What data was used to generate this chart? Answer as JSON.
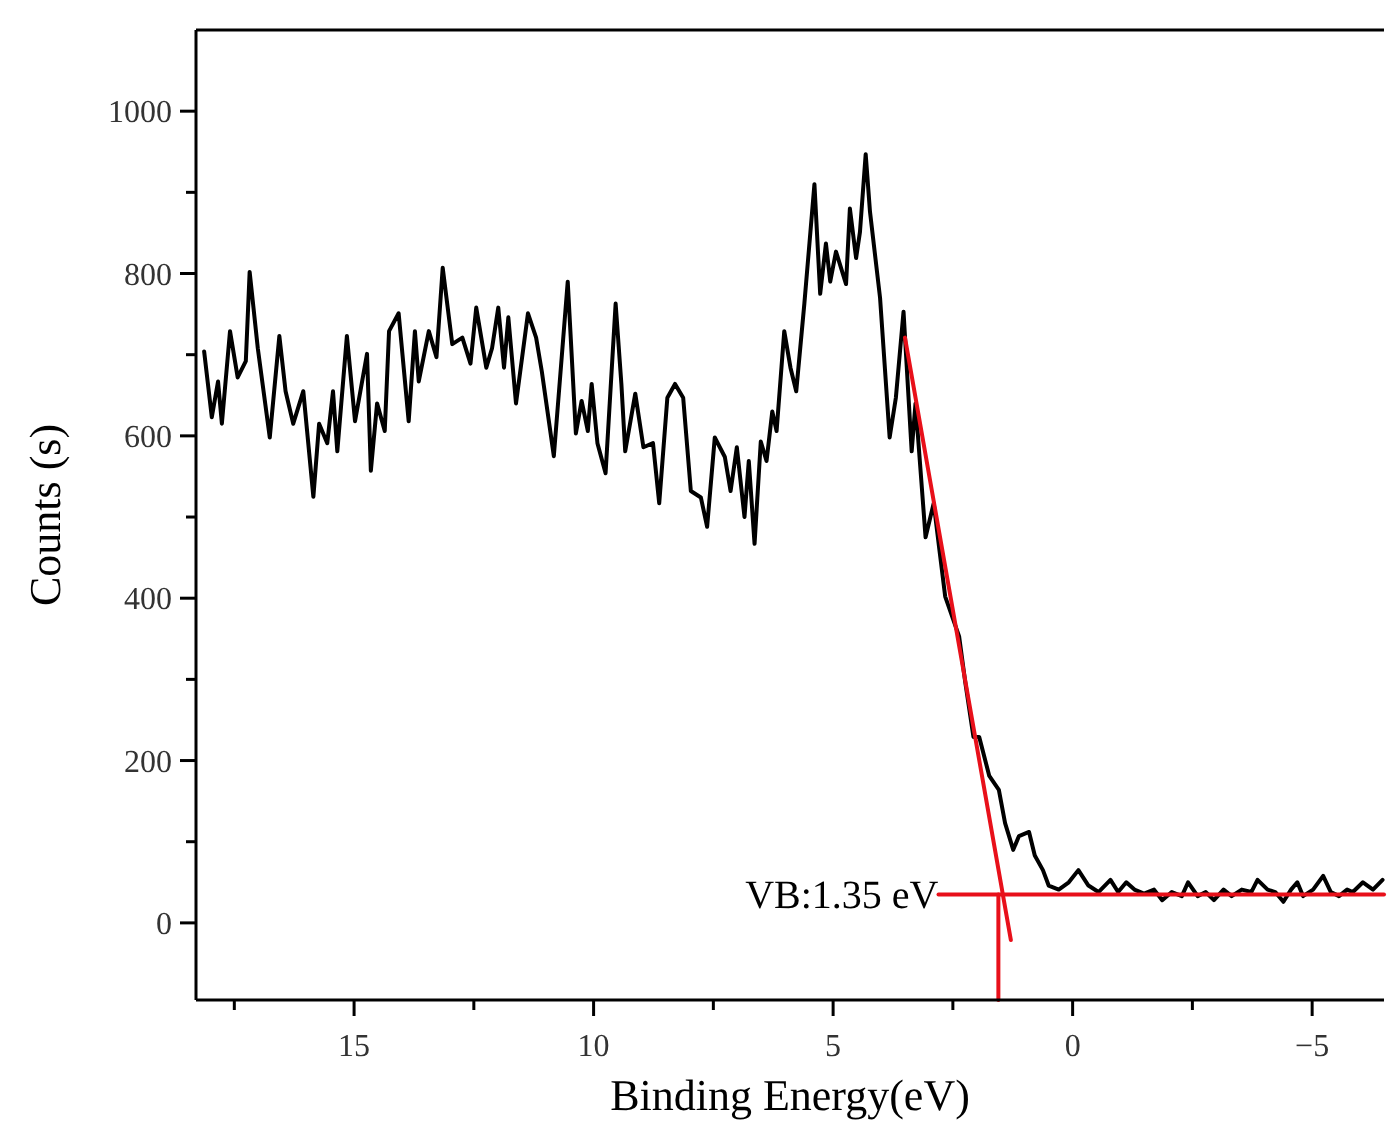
{
  "chart_data": {
    "type": "line",
    "xlabel": "Binding Energy(eV)",
    "ylabel": "Counts (s)",
    "xlim": [
      18.3,
      -6.5
    ],
    "ylim": [
      -95,
      1100
    ],
    "xticks": [
      {
        "value": 17.5,
        "label": null
      },
      15,
      {
        "value": 12.5,
        "label": null
      },
      10,
      {
        "value": 7.5,
        "label": null
      },
      5,
      {
        "value": 2.5,
        "label": null
      },
      0,
      {
        "value": -2.5,
        "label": null
      },
      {
        "value": -5,
        "label": "−5"
      }
    ],
    "yticks": [
      0,
      {
        "value": 100,
        "label": null
      },
      200,
      {
        "value": 300,
        "label": null
      },
      400,
      {
        "value": 500,
        "label": null
      },
      600,
      {
        "value": 700,
        "label": null
      },
      800,
      {
        "value": 900,
        "label": null
      },
      1000
    ],
    "grid": false,
    "marker": "none",
    "line_style": "solid",
    "annotations": [
      {
        "text": "VB:1.35 eV",
        "x": 2.8,
        "y": 35
      }
    ],
    "series": [
      {
        "color": "#000000",
        "x": [
          18.13,
          17.97,
          17.84,
          17.76,
          17.59,
          17.43,
          17.26,
          17.18,
          17.01,
          16.76,
          16.56,
          16.43,
          16.27,
          16.06,
          15.85,
          15.73,
          15.56,
          15.44,
          15.35,
          15.15,
          14.98,
          14.73,
          14.65,
          14.52,
          14.36,
          14.27,
          14.07,
          13.86,
          13.73,
          13.65,
          13.44,
          13.28,
          13.15,
          12.95,
          12.74,
          12.57,
          12.45,
          12.24,
          12.12,
          11.99,
          11.87,
          11.78,
          11.62,
          11.37,
          11.2,
          11.08,
          10.83,
          10.54,
          10.37,
          10.25,
          10.12,
          10.04,
          9.92,
          9.75,
          9.54,
          9.42,
          9.34,
          9.13,
          8.96,
          8.76,
          8.63,
          8.46,
          8.3,
          8.13,
          7.97,
          7.76,
          7.63,
          7.47,
          7.26,
          7.14,
          7.01,
          6.85,
          6.76,
          6.64,
          6.51,
          6.39,
          6.27,
          6.18,
          6.02,
          5.89,
          5.77,
          5.6,
          5.39,
          5.27,
          5.15,
          5.06,
          4.94,
          4.73,
          4.65,
          4.52,
          4.44,
          4.32,
          4.23,
          4.02,
          3.82,
          3.69,
          3.53,
          3.36,
          3.28,
          3.07,
          2.9,
          2.78,
          2.66,
          2.37,
          2.24,
          2.07,
          1.95,
          1.74,
          1.54,
          1.41,
          1.24,
          1.12,
          0.91,
          0.79,
          0.62,
          0.5,
          0.29,
          0.08,
          -0.12,
          -0.33,
          -0.54,
          -0.79,
          -0.95,
          -1.12,
          -1.29,
          -1.49,
          -1.7,
          -1.87,
          -2.07,
          -2.28,
          -2.41,
          -2.61,
          -2.78,
          -2.95,
          -3.15,
          -3.32,
          -3.53,
          -3.73,
          -3.86,
          -4.07,
          -4.23,
          -4.4,
          -4.56,
          -4.69,
          -4.81,
          -5.02,
          -5.23,
          -5.39,
          -5.56,
          -5.73,
          -5.85,
          -6.06,
          -6.27,
          -6.47
        ],
        "values": [
          704,
          623,
          667,
          615,
          729,
          672,
          692,
          802,
          708,
          598,
          723,
          655,
          615,
          655,
          525,
          615,
          591,
          655,
          581,
          723,
          618,
          701,
          557,
          640,
          606,
          729,
          751,
          618,
          729,
          667,
          729,
          697,
          807,
          713,
          721,
          689,
          758,
          684,
          708,
          758,
          684,
          746,
          640,
          751,
          721,
          679,
          575,
          790,
          603,
          643,
          606,
          664,
          591,
          554,
          763,
          664,
          581,
          652,
          586,
          591,
          517,
          647,
          664,
          647,
          532,
          524,
          488,
          598,
          574,
          532,
          586,
          500,
          569,
          467,
          593,
          569,
          630,
          606,
          729,
          684,
          655,
          763,
          910,
          775,
          837,
          790,
          827,
          787,
          880,
          819,
          851,
          947,
          876,
          770,
          598,
          647,
          753,
          581,
          640,
          475,
          517,
          459,
          402,
          353,
          296,
          229,
          229,
          181,
          164,
          123,
          90,
          107,
          112,
          83,
          65,
          46,
          41,
          50,
          65,
          46,
          38,
          53,
          38,
          50,
          41,
          36,
          41,
          28,
          38,
          33,
          50,
          33,
          38,
          28,
          41,
          33,
          41,
          38,
          53,
          41,
          38,
          26,
          41,
          50,
          33,
          41,
          58,
          38,
          33,
          41,
          38,
          50,
          41,
          53
        ]
      },
      {
        "color": "#e8101a",
        "x": [
          3.5,
          1.29
        ],
        "values": [
          721,
          -21
        ]
      },
      {
        "color": "#e8101a",
        "x": [
          2.8,
          -6.5
        ],
        "values": [
          35,
          35
        ]
      },
      {
        "color": "#e8101a",
        "x": [
          1.55,
          1.55
        ],
        "values": [
          35,
          -95
        ]
      }
    ]
  }
}
